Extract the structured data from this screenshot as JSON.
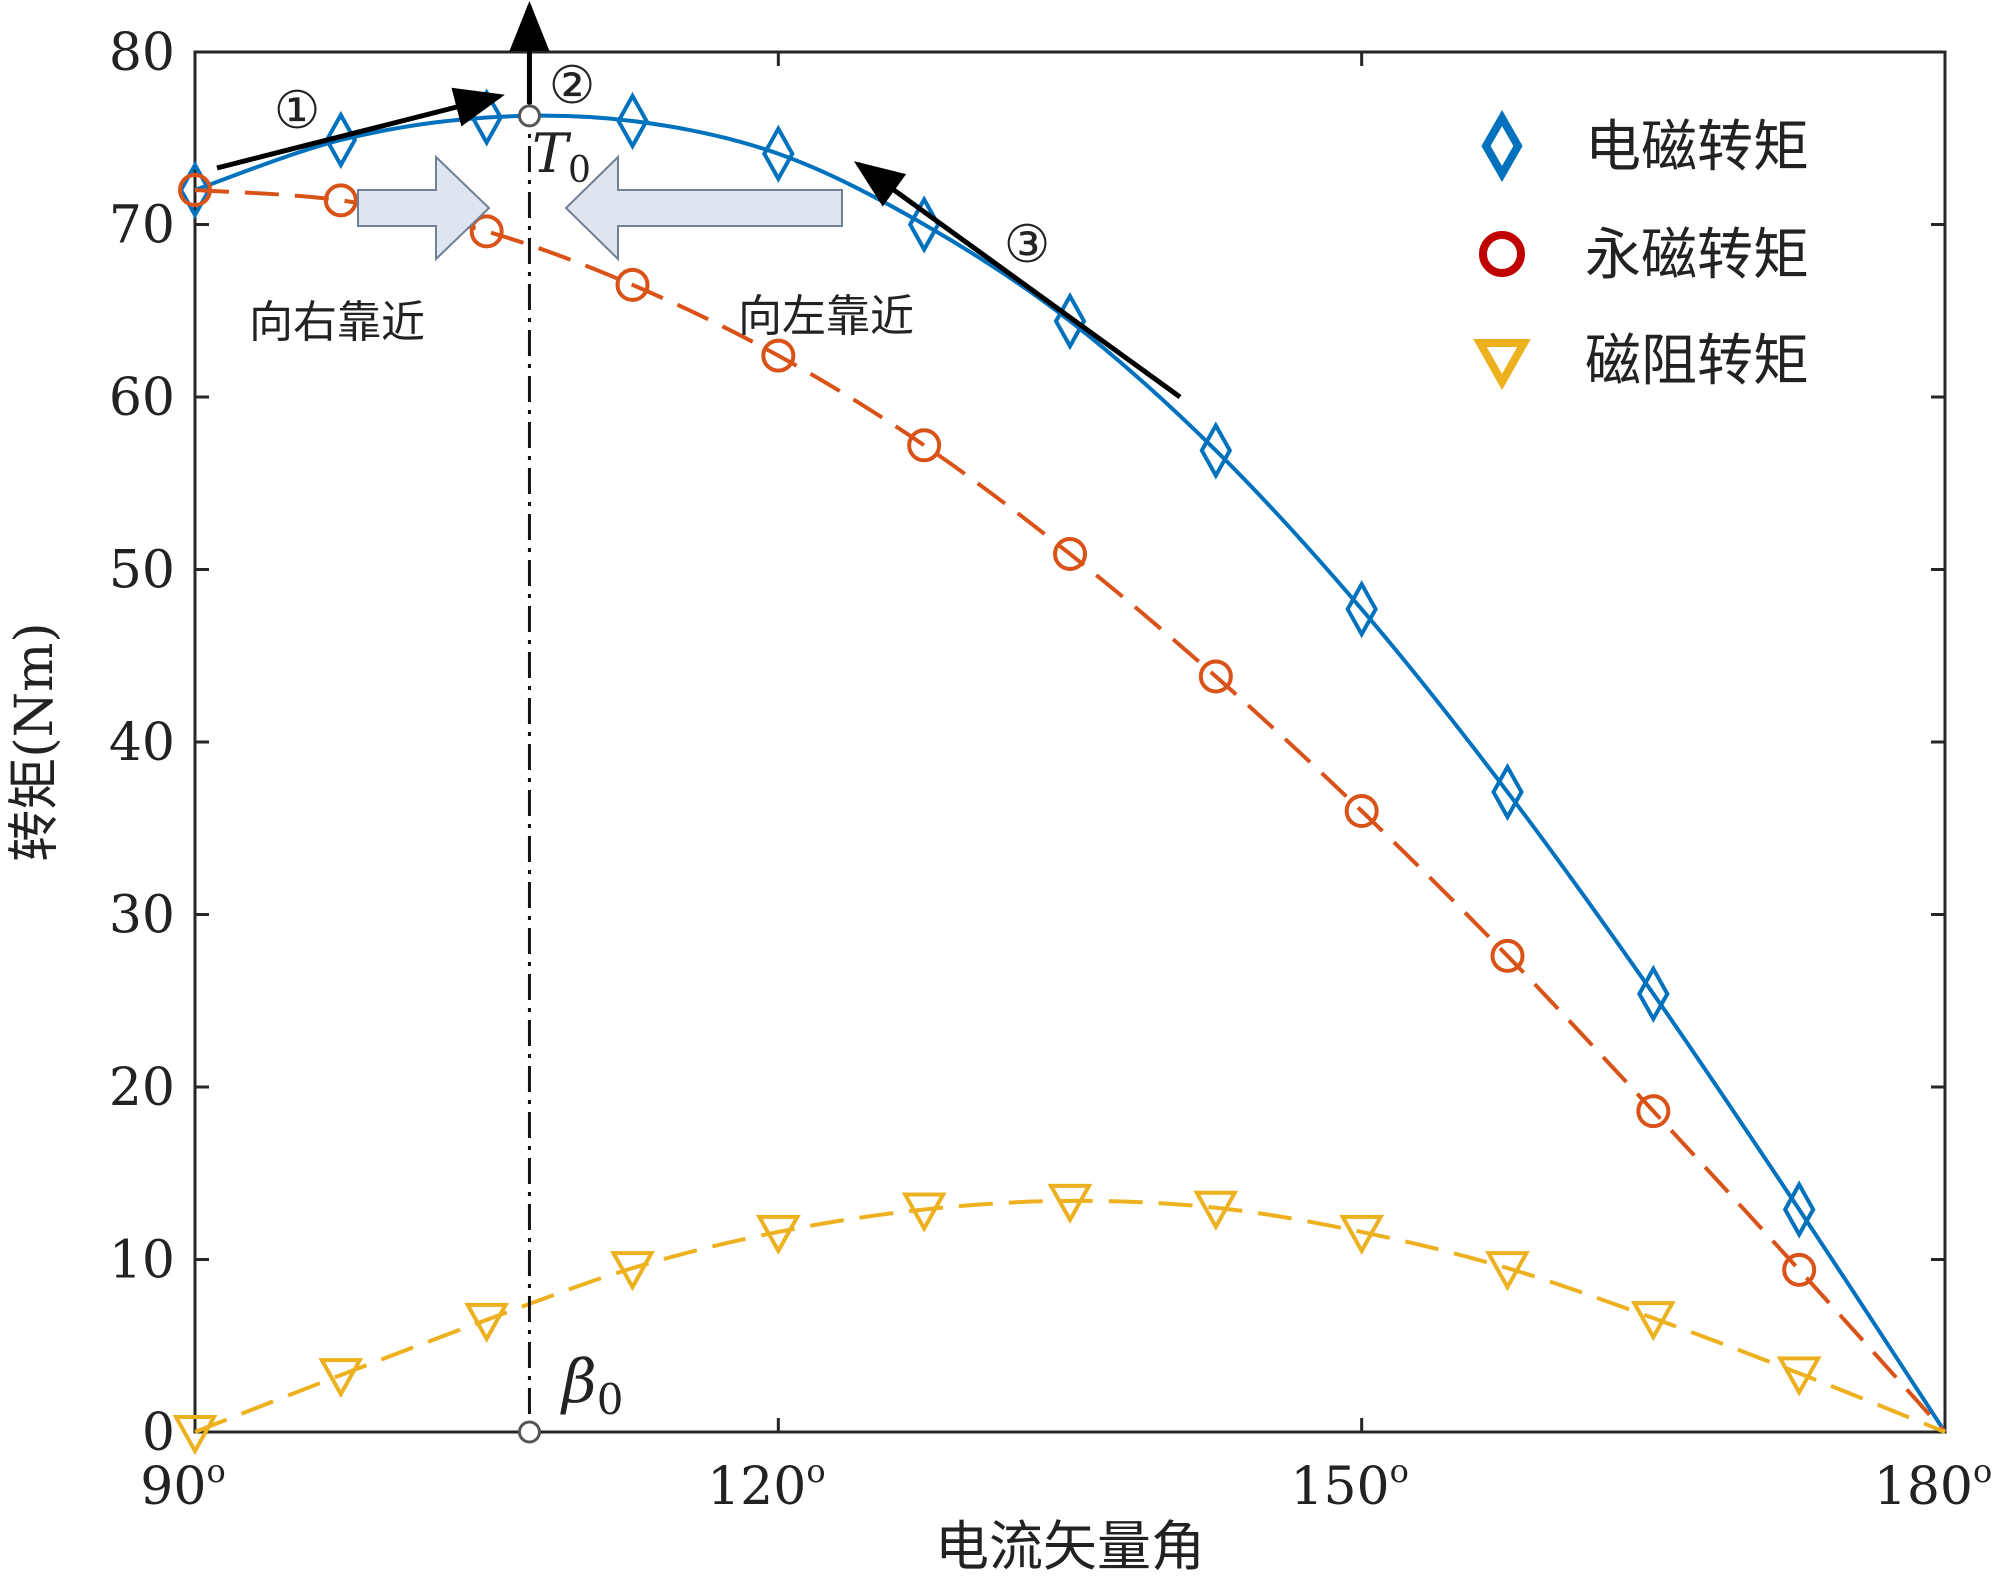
{
  "chart_data": {
    "type": "line",
    "title": "",
    "xlabel": "电流矢量角",
    "ylabel": "转矩(Nm)",
    "xlim": [
      90,
      180
    ],
    "ylim": [
      0,
      80
    ],
    "xticks": [
      {
        "value": 90,
        "label": "90",
        "sup": "o"
      },
      {
        "value": 120,
        "label": "120",
        "sup": "o"
      },
      {
        "value": 150,
        "label": "150",
        "sup": "o"
      },
      {
        "value": 180,
        "label": "180",
        "sup": "o"
      }
    ],
    "yticks": [
      0,
      10,
      20,
      30,
      40,
      50,
      60,
      70,
      80
    ],
    "series": [
      {
        "name": "电磁转矩",
        "color": "#0072BD",
        "line": "solid",
        "marker": "diamond",
        "x": [
          90,
          97.5,
          105,
          112.5,
          120,
          127.5,
          135,
          142.5,
          150,
          157.5,
          165,
          172.5,
          180
        ],
        "y": [
          72.0,
          74.9,
          76.2,
          76.0,
          74.1,
          70.0,
          64.4,
          56.9,
          47.7,
          37.1,
          25.4,
          12.9,
          0.0
        ]
      },
      {
        "name": "永磁转矩",
        "color": "#D95319",
        "line": "dashed",
        "marker": "circle",
        "x": [
          90,
          97.5,
          105,
          112.5,
          120,
          127.5,
          135,
          142.5,
          150,
          157.5,
          165,
          172.5,
          180
        ],
        "y": [
          72.0,
          71.4,
          69.6,
          66.5,
          62.4,
          57.2,
          50.9,
          43.8,
          36.0,
          27.6,
          18.6,
          9.4,
          0.0
        ]
      },
      {
        "name": "磁阻转矩",
        "color": "#EDB120",
        "line": "dashed",
        "marker": "triangle-down",
        "x": [
          90,
          97.5,
          105,
          112.5,
          120,
          127.5,
          135,
          142.5,
          150,
          157.5,
          165,
          172.5,
          180
        ],
        "y": [
          0.0,
          3.3,
          6.5,
          9.5,
          11.6,
          12.9,
          13.4,
          13.0,
          11.6,
          9.5,
          6.6,
          3.4,
          0.0
        ]
      }
    ],
    "annotations": {
      "peak_label": "T",
      "peak_label_sub": "0",
      "beta_label": "β",
      "beta_label_sub": "0",
      "beta_x": 107.2,
      "peak_y": 76.3,
      "circle_1": "①",
      "circle_2": "②",
      "circle_3": "③",
      "left_text": "向右靠近",
      "right_text": "向左靠近"
    },
    "legend": {
      "placement": "top-right"
    }
  }
}
